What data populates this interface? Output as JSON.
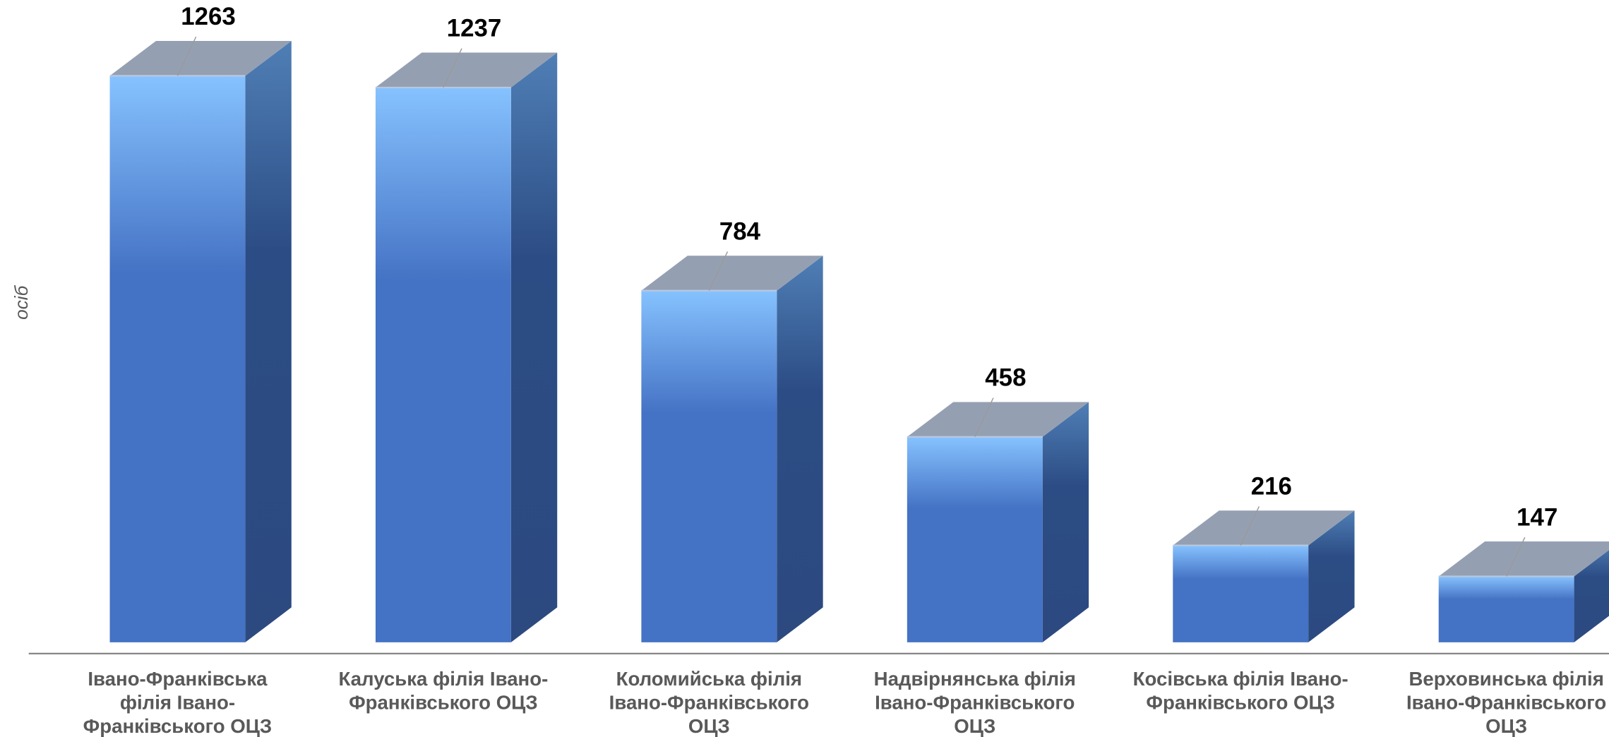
{
  "chart_data": {
    "type": "bar3d",
    "ylabel": "осіб",
    "categories": [
      "Івано-Франківська філія Івано-Франківського ОЦЗ",
      "Калуська філія Івано-Франківського ОЦЗ",
      "Коломийська філія Івано-Франківського ОЦЗ",
      "Надвірнянська філія Івано-Франківського ОЦЗ",
      "Косівська філія Івано-Франківського ОЦЗ",
      "Верховинська філія Івано-Франківського ОЦЗ"
    ],
    "values": [
      1263,
      1237,
      784,
      458,
      216,
      147
    ],
    "color": "#4472c4",
    "ylim": [
      0,
      1400
    ]
  }
}
